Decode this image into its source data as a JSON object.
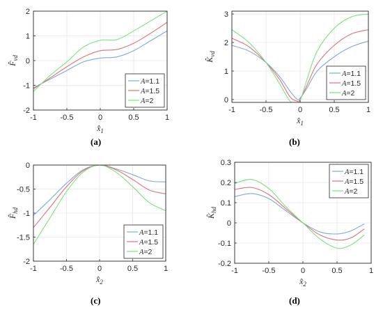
{
  "captions": [
    "(a)",
    "(b)",
    "(c)",
    "(d)"
  ],
  "colors": {
    "A=1.1": "#7ea8d8",
    "A=1.5": "#e0707a",
    "A=2": "#7fe07f"
  },
  "chart_data": [
    {
      "id": "a",
      "type": "line",
      "ylabel": "F̂_vd",
      "xlabel": "x̂_1",
      "xlim": [
        -1,
        1
      ],
      "ylim": [
        -2,
        2
      ],
      "xticks": [
        -1,
        -0.5,
        0,
        0.5,
        1
      ],
      "xtick_labels": [
        "-1",
        "-0.5",
        "0",
        "0.5",
        "1"
      ],
      "yticks": [
        -2,
        -1,
        0,
        1,
        2
      ],
      "ytick_labels": [
        "-2",
        "-1",
        "0",
        "1",
        "2"
      ],
      "legend_position": "bottom-right",
      "series": [
        {
          "name": "A=1.1",
          "color": "#7ea8d8",
          "x": [
            -1,
            -0.75,
            -0.5,
            -0.25,
            0,
            0.25,
            0.5,
            0.75,
            1
          ],
          "y": [
            -1.1,
            -0.75,
            -0.4,
            -0.05,
            0.1,
            0.15,
            0.4,
            0.8,
            1.2
          ]
        },
        {
          "name": "A=1.5",
          "color": "#e0707a",
          "x": [
            -1,
            -0.75,
            -0.5,
            -0.25,
            0,
            0.25,
            0.5,
            0.75,
            1
          ],
          "y": [
            -1.15,
            -0.7,
            -0.25,
            0.15,
            0.4,
            0.45,
            0.7,
            1.1,
            1.55
          ]
        },
        {
          "name": "A=2",
          "color": "#7fe07f",
          "x": [
            -1,
            -0.75,
            -0.5,
            -0.25,
            0,
            0.25,
            0.5,
            0.75,
            1
          ],
          "y": [
            -1.25,
            -0.6,
            -0.05,
            0.55,
            0.82,
            0.85,
            1.2,
            1.6,
            2.0
          ]
        }
      ]
    },
    {
      "id": "b",
      "type": "line",
      "ylabel": "K̂_vd",
      "xlabel": "x̂_1",
      "xlim": [
        -1,
        1
      ],
      "ylim": [
        -0.1,
        3.1
      ],
      "xticks": [
        -1,
        -0.5,
        0,
        0.5,
        1
      ],
      "xtick_labels": [
        "-1",
        "-0.5",
        "0",
        "0.5",
        "1"
      ],
      "yticks": [
        0,
        1,
        2,
        3
      ],
      "ytick_labels": [
        "0",
        "1",
        "2",
        "3"
      ],
      "legend_position": "bottom-right",
      "series": [
        {
          "name": "A=1.1",
          "color": "#7ea8d8",
          "x": [
            -1,
            -0.75,
            -0.5,
            -0.3,
            -0.15,
            -0.05,
            0,
            0.1,
            0.25,
            0.5,
            0.75,
            1
          ],
          "y": [
            1.9,
            1.7,
            1.3,
            0.8,
            0.3,
            0.02,
            0.05,
            0.4,
            1.0,
            1.5,
            1.85,
            2.05
          ]
        },
        {
          "name": "A=1.5",
          "color": "#e0707a",
          "x": [
            -1,
            -0.75,
            -0.5,
            -0.3,
            -0.15,
            -0.05,
            0,
            0.1,
            0.25,
            0.5,
            0.75,
            1
          ],
          "y": [
            2.15,
            1.85,
            1.3,
            0.7,
            0.1,
            -0.05,
            0.0,
            0.5,
            1.25,
            1.9,
            2.3,
            2.45
          ]
        },
        {
          "name": "A=2",
          "color": "#7fe07f",
          "x": [
            -1,
            -0.75,
            -0.5,
            -0.3,
            -0.15,
            -0.05,
            0,
            0.1,
            0.25,
            0.5,
            0.75,
            1
          ],
          "y": [
            2.45,
            2.0,
            1.3,
            0.55,
            -0.05,
            -0.15,
            -0.05,
            0.7,
            1.7,
            2.5,
            2.9,
            3.0
          ]
        }
      ]
    },
    {
      "id": "c",
      "type": "line",
      "ylabel": "F̂_hd",
      "xlabel": "x̂_2",
      "xlim": [
        -1,
        1
      ],
      "ylim": [
        -2,
        0
      ],
      "xticks": [
        -1,
        -0.5,
        0,
        0.5,
        1
      ],
      "xtick_labels": [
        "-1",
        "-0.5",
        "0",
        "0.5",
        "1"
      ],
      "yticks": [
        -2,
        -1.5,
        -1,
        -0.5,
        0
      ],
      "ytick_labels": [
        "-2",
        "-1.5",
        "-1",
        "-0.5",
        "0"
      ],
      "legend_position": "bottom-right",
      "series": [
        {
          "name": "A=1.1",
          "color": "#7ea8d8",
          "x": [
            -1,
            -0.75,
            -0.5,
            -0.25,
            0,
            0.25,
            0.5,
            0.75,
            1
          ],
          "y": [
            -1.05,
            -0.72,
            -0.38,
            -0.1,
            0,
            -0.08,
            -0.2,
            -0.33,
            -0.35
          ]
        },
        {
          "name": "A=1.5",
          "color": "#e0707a",
          "x": [
            -1,
            -0.75,
            -0.5,
            -0.25,
            0,
            0.25,
            0.5,
            0.75,
            1
          ],
          "y": [
            -1.3,
            -0.88,
            -0.45,
            -0.12,
            0,
            -0.1,
            -0.3,
            -0.52,
            -0.6
          ]
        },
        {
          "name": "A=2",
          "color": "#7fe07f",
          "x": [
            -1,
            -0.75,
            -0.5,
            -0.25,
            0,
            0.25,
            0.5,
            0.75,
            1
          ],
          "y": [
            -1.65,
            -1.1,
            -0.55,
            -0.15,
            0,
            -0.15,
            -0.45,
            -0.78,
            -0.95
          ]
        }
      ]
    },
    {
      "id": "d",
      "type": "line",
      "ylabel": "K̂_hd",
      "xlabel": "x̂_2",
      "xlim": [
        -1,
        1
      ],
      "ylim": [
        -0.2,
        0.3
      ],
      "xticks": [
        -1,
        -0.5,
        0,
        0.5,
        1
      ],
      "xtick_labels": [
        "-1",
        "-0.5",
        "0",
        "0.5",
        "1"
      ],
      "yticks": [
        -0.2,
        -0.1,
        0,
        0.1,
        0.2,
        0.3
      ],
      "ytick_labels": [
        "-0.2",
        "-0.1",
        "0",
        "0.1",
        "0.2",
        "0.3"
      ],
      "legend_position": "top-right",
      "series": [
        {
          "name": "A=1.1",
          "color": "#7ea8d8",
          "x": [
            -1,
            -0.75,
            -0.5,
            -0.25,
            0,
            0.25,
            0.5,
            0.7,
            0.9
          ],
          "y": [
            0.13,
            0.145,
            0.12,
            0.06,
            0.0,
            -0.045,
            -0.055,
            -0.04,
            -0.005
          ]
        },
        {
          "name": "A=1.5",
          "color": "#e0707a",
          "x": [
            -1,
            -0.75,
            -0.5,
            -0.25,
            0,
            0.25,
            0.5,
            0.7,
            0.9
          ],
          "y": [
            0.165,
            0.175,
            0.14,
            0.07,
            0.0,
            -0.06,
            -0.085,
            -0.075,
            -0.03
          ]
        },
        {
          "name": "A=2",
          "color": "#7fe07f",
          "x": [
            -1,
            -0.75,
            -0.5,
            -0.25,
            0,
            0.25,
            0.5,
            0.7,
            0.9
          ],
          "y": [
            0.195,
            0.215,
            0.17,
            0.08,
            0.0,
            -0.08,
            -0.125,
            -0.11,
            -0.06
          ]
        }
      ]
    }
  ]
}
